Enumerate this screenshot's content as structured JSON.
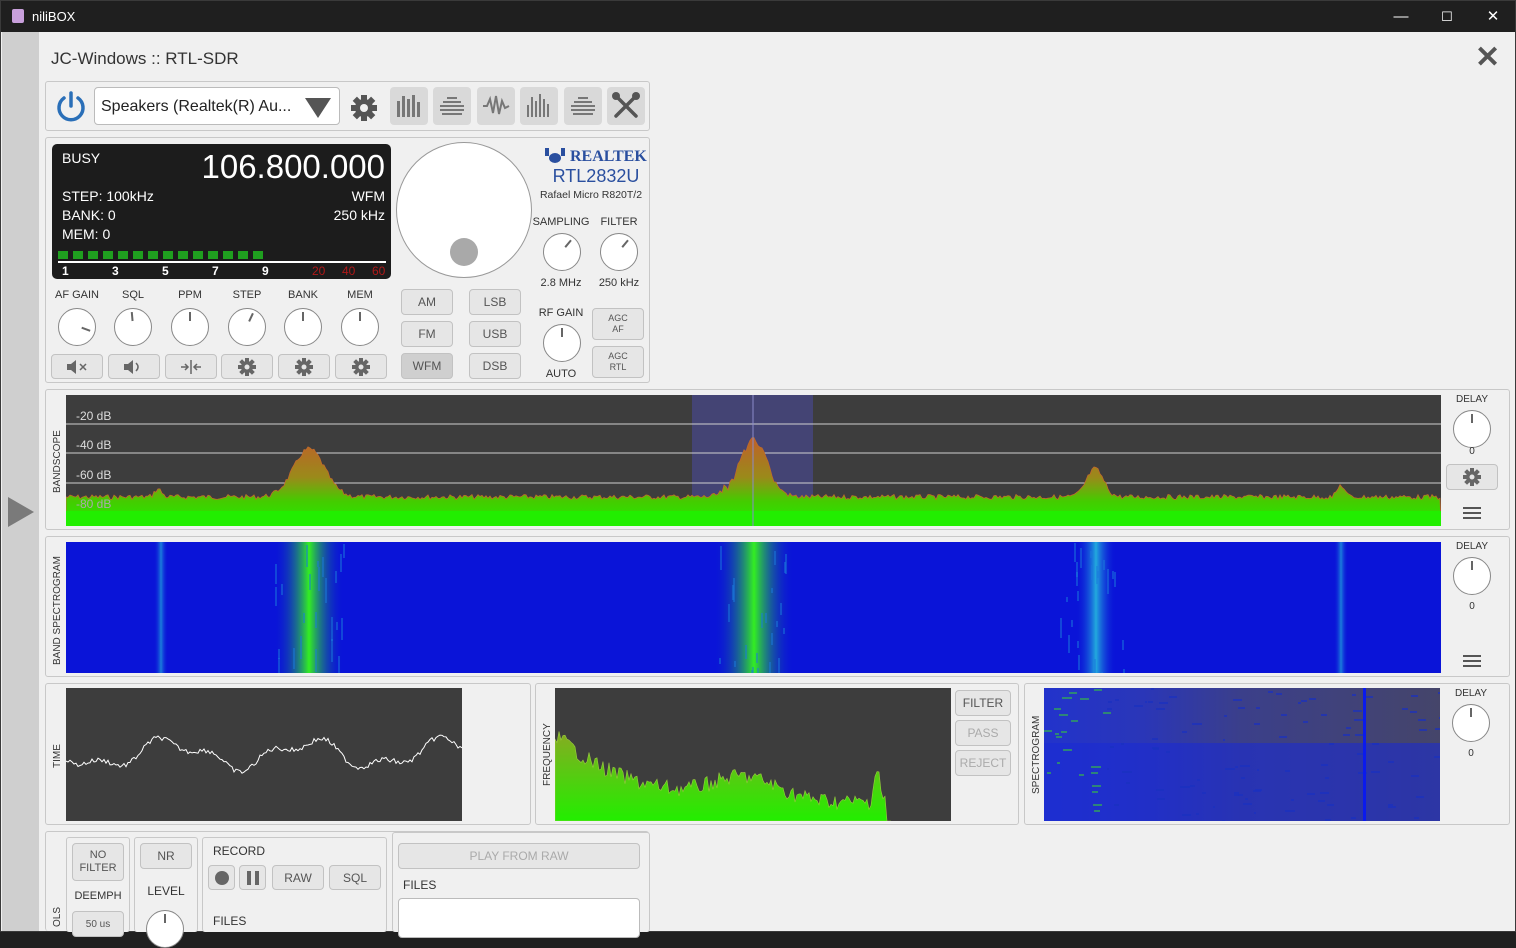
{
  "window": {
    "title": "niliBOX",
    "minimize_icon": "—",
    "maximize_icon": "☐",
    "close_icon": "✕"
  },
  "header": {
    "device_title": "JC-Windows :: RTL-SDR",
    "close_icon": "✕"
  },
  "toolbar": {
    "audio_device": "Speakers (Realtek(R) Au..."
  },
  "lcd": {
    "status": "BUSY",
    "frequency": "106.800.000",
    "step": "STEP: 100kHz",
    "mode": "WFM",
    "bank": "BANK: 0",
    "bandwidth": "250 kHz",
    "mem": "MEM: 0",
    "meter_level_segments": 14,
    "meter_total_segments": 22,
    "scale": [
      "1",
      "3",
      "5",
      "7",
      "9"
    ],
    "scale_red": [
      "20",
      "40",
      "60"
    ]
  },
  "device": {
    "brand": "REALTEK",
    "chip": "RTL2832U",
    "tuner": "Rafael Micro R820T/2",
    "sampling_label": "SAMPLING",
    "sampling_value": "2.8 MHz",
    "filter_label": "FILTER",
    "filter_value": "250 kHz",
    "rfgain_label": "RF GAIN",
    "rfgain_value": "AUTO",
    "agc_af_1": "AGC",
    "agc_af_2": "AF",
    "agc_rtl_1": "AGC",
    "agc_rtl_2": "RTL"
  },
  "controls": {
    "labels": [
      "AF GAIN",
      "SQL",
      "PPM",
      "STEP",
      "BANK",
      "MEM"
    ]
  },
  "modes": {
    "am": "AM",
    "lsb": "LSB",
    "fm": "FM",
    "usb": "USB",
    "wfm": "WFM",
    "dsb": "DSB",
    "selected": "WFM"
  },
  "bandscope": {
    "label": "BANDSCOPE",
    "db_labels": [
      "-20 dB",
      "-40 dB",
      "-60 dB",
      "-80 dB"
    ],
    "delay_label": "DELAY",
    "delay_value": "0",
    "colors": {
      "background": "#3d3d3d",
      "signal_low": "#33cc00",
      "signal_high": "#c0602a",
      "marker": "#4a4a9a"
    }
  },
  "spectrogram": {
    "label": "BAND SPECTROGRAM",
    "delay_label": "DELAY",
    "delay_value": "0",
    "colors": {
      "background": "#0a14d8",
      "signal": "#33dd22"
    }
  },
  "time": {
    "label": "TIME"
  },
  "frequency": {
    "label": "FREQUENCY",
    "filter": "FILTER",
    "pass": "PASS",
    "reject": "REJECT"
  },
  "audio_spectrogram": {
    "label": "SPECTROGRAM",
    "delay_label": "DELAY",
    "delay_value": "0"
  },
  "tools": {
    "label": "OLS",
    "no_filter_1": "NO",
    "no_filter_2": "FILTER",
    "deemph": "DEEMPH",
    "deemph_value": "50 us",
    "nr": "NR",
    "level": "LEVEL",
    "record": "RECORD",
    "raw": "RAW",
    "sql": "SQL",
    "files": "FILES",
    "play_from_raw": "PLAY FROM RAW",
    "files2": "FILES"
  }
}
